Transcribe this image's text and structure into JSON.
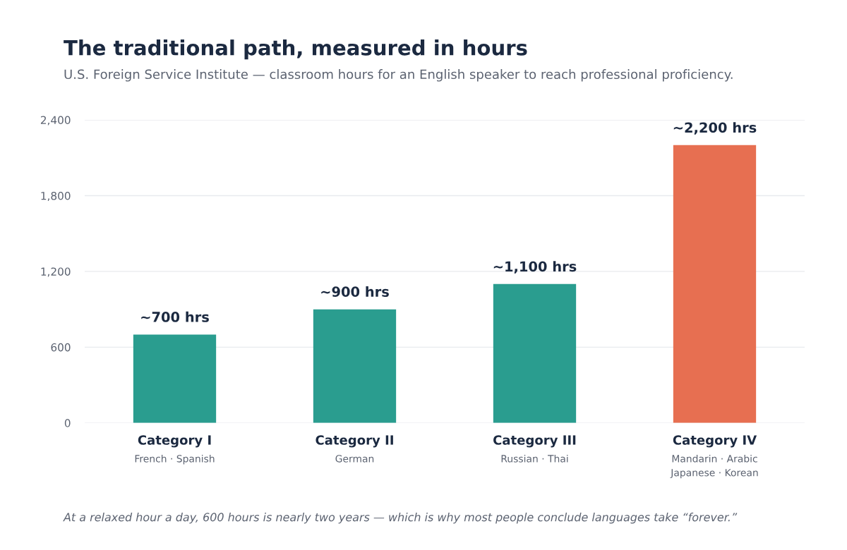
{
  "chart_data": {
    "type": "bar",
    "title": "The traditional path, measured in hours",
    "subtitle": "U.S. Foreign Service Institute — classroom hours for an English speaker to reach professional proficiency.",
    "categories": [
      "Category I\nFrench · Spanish",
      "Category II\nGerman",
      "Category III\nRussian · Thai",
      "Category IV\nMandarin · Arabic\nJapanese · Korean"
    ],
    "values": [
      700,
      900,
      1100,
      2200
    ],
    "colors": [
      "#2a9d8f",
      "#2a9d8f",
      "#2a9d8f",
      "#e76f51"
    ],
    "value_labels": [
      "~700 hrs",
      "~900 hrs",
      "~1,100 hrs",
      "~2,200 hrs"
    ],
    "ylim": [
      0,
      2400
    ],
    "yticks": [
      {
        "value": 0,
        "label": "0"
      },
      {
        "value": 600,
        "label": "600"
      },
      {
        "value": 1200,
        "label": "1,200"
      },
      {
        "value": 1800,
        "label": "1,800"
      },
      {
        "value": 2400,
        "label": "2,400"
      }
    ],
    "grid": "y",
    "annotations": [
      "At a relaxed hour a day, 600 hours is nearly two years — which is why most people conclude languages take “forever.”"
    ]
  }
}
